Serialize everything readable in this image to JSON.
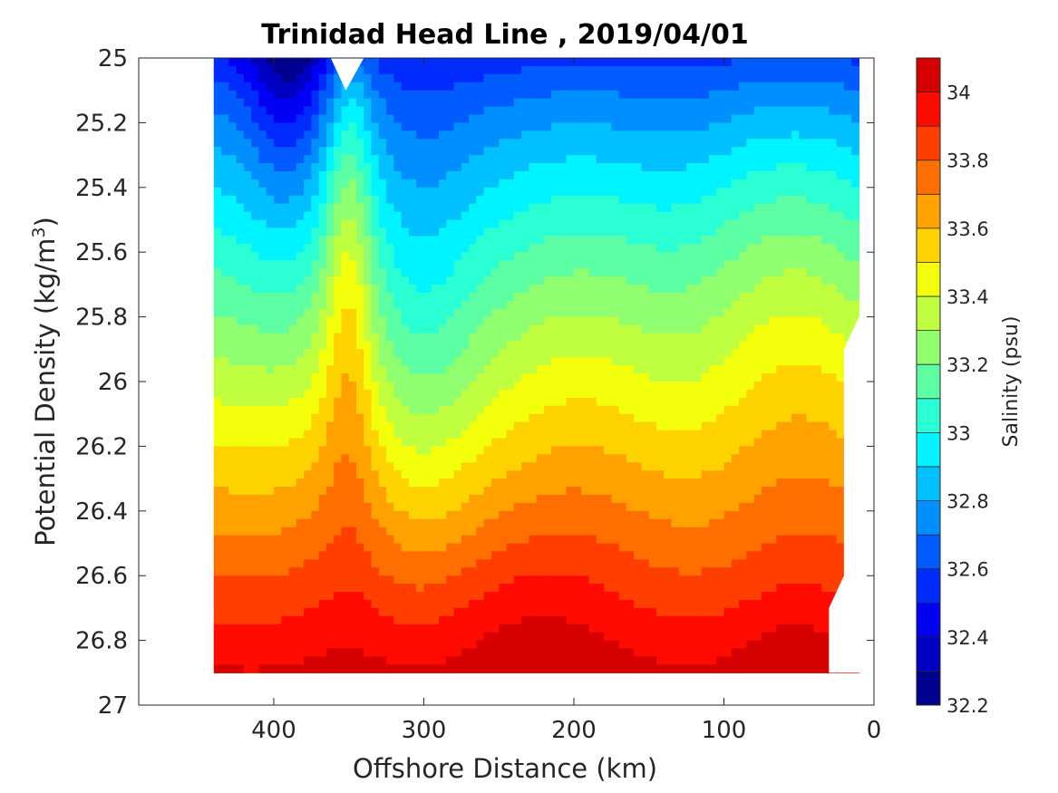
{
  "chart_data": {
    "type": "contour",
    "title": "Trinidad Head Line , 2019/04/01",
    "xlabel": "Offshore Distance (km)",
    "ylabel_main": "Potential Density (kg/m",
    "ylabel_sup": "3",
    "ylabel_tail": ")",
    "colorbar_label": "Salinity (psu)",
    "xlim": [
      490,
      0
    ],
    "ylim": [
      25,
      27
    ],
    "y_reversed": true,
    "x_reversed": true,
    "xticks": [
      400,
      300,
      200,
      100,
      0
    ],
    "xtick_labels": [
      "400",
      "300",
      "200",
      "100",
      "0"
    ],
    "yticks": [
      25,
      25.2,
      25.4,
      25.6,
      25.8,
      26,
      26.2,
      26.4,
      26.6,
      26.8,
      27
    ],
    "ytick_labels": [
      "25",
      "25.2",
      "25.4",
      "25.6",
      "25.8",
      "26",
      "26.2",
      "26.4",
      "26.6",
      "26.8",
      "27"
    ],
    "colorbar_range": [
      32.2,
      34.1
    ],
    "colorbar_ticks": [
      32.2,
      32.4,
      32.6,
      32.8,
      33,
      33.2,
      33.4,
      33.6,
      33.8,
      34
    ],
    "colorbar_tick_labels": [
      "32.2",
      "32.4",
      "32.6",
      "32.8",
      "33",
      "33.2",
      "33.4",
      "33.6",
      "33.8",
      "34"
    ],
    "levels": [
      32.2,
      32.3,
      32.4,
      32.5,
      32.6,
      32.7,
      32.8,
      32.9,
      33.0,
      33.1,
      33.2,
      33.3,
      33.4,
      33.5,
      33.6,
      33.7,
      33.8,
      33.9,
      34.0,
      34.1
    ],
    "level_colors": [
      "#00008f",
      "#0000c3",
      "#0000f4",
      "#002bff",
      "#005cff",
      "#008fff",
      "#00c0ff",
      "#00f4ff",
      "#2bffd4",
      "#5cffa3",
      "#8fff70",
      "#c0ff3f",
      "#f4ff0b",
      "#ffd300",
      "#ffa200",
      "#ff6f00",
      "#ff3e00",
      "#ff0b00",
      "#d60000",
      "#a40000"
    ],
    "data_extent_x": [
      440,
      10
    ],
    "data_extent_y": [
      25,
      26.9
    ],
    "colormap": "jet"
  }
}
